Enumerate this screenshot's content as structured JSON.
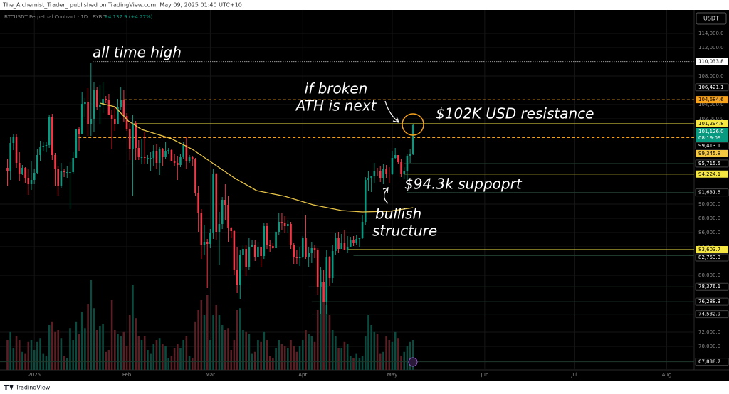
{
  "chart_data": {
    "type": "candlestick",
    "publisher": "The_Alchemist_Trader_ published on TradingView.com, May 09, 2025 01:40 UTC+10",
    "symbol": "BTCUSDT Perpetual Contract · 1D · BYBIT",
    "change": "+4,137.9 (+4.27%)",
    "currency": "USDT",
    "brand": "TradingView",
    "annotations": [
      "all time high",
      "if broken",
      "ATH is next",
      "$102K USD resistance",
      "$94.3k suppoprt",
      "bullish",
      "structure"
    ],
    "up_color": "#089981",
    "down_color": "#f23645",
    "grid": true,
    "xlim": [
      -2.5,
      230.2
    ],
    "xticks": [
      {
        "value": 9,
        "label": "2025"
      },
      {
        "value": 40,
        "label": "Feb"
      },
      {
        "value": 68,
        "label": "Mar"
      },
      {
        "value": 99,
        "label": "Apr"
      },
      {
        "value": 129,
        "label": "May"
      },
      {
        "value": 160,
        "label": "Jun"
      },
      {
        "value": 190,
        "label": "Jul"
      },
      {
        "value": 221,
        "label": "Aug"
      }
    ],
    "ylim": [
      66700,
      116900
    ],
    "yticks": [
      {
        "value": 114000,
        "label": "114,000.0"
      },
      {
        "value": 112000,
        "label": "112,000.0"
      },
      {
        "value": 108000,
        "label": "108,000.0"
      },
      {
        "value": 104000,
        "label": "104,000.0"
      },
      {
        "value": 102000,
        "label": "102,000.0"
      },
      {
        "value": 90000,
        "label": "90,000.0"
      },
      {
        "value": 88000,
        "label": "88,000.0"
      },
      {
        "value": 86000,
        "label": "86,000.0"
      },
      {
        "value": 84000,
        "label": "84,000.0"
      },
      {
        "value": 80000,
        "label": "80,000.0"
      },
      {
        "value": 72000,
        "label": "72,000.0"
      },
      {
        "value": 70000,
        "label": "70,000.0"
      }
    ],
    "candles": [
      [
        95100,
        96400,
        92500,
        94700
      ],
      [
        94700,
        99400,
        93400,
        98600
      ],
      [
        98600,
        99900,
        97600,
        99400
      ],
      [
        99400,
        99900,
        95100,
        95800
      ],
      [
        95800,
        97300,
        93300,
        94200
      ],
      [
        94200,
        95500,
        94100,
        95100
      ],
      [
        95100,
        95200,
        93000,
        93700
      ],
      [
        93700,
        94900,
        91300,
        92800
      ],
      [
        92800,
        96100,
        92000,
        93400
      ],
      [
        93400,
        94900,
        92800,
        94400
      ],
      [
        94400,
        97800,
        94300,
        96900
      ],
      [
        96900,
        98900,
        96000,
        98100
      ],
      [
        98100,
        98700,
        97500,
        98200
      ],
      [
        98200,
        98800,
        97300,
        98300
      ],
      [
        98300,
        102500,
        97900,
        102200
      ],
      [
        102200,
        102700,
        96200,
        96900
      ],
      [
        96900,
        97200,
        92500,
        95000
      ],
      [
        95000,
        95300,
        91200,
        92500
      ],
      [
        92500,
        95800,
        92200,
        94700
      ],
      [
        94700,
        95000,
        93800,
        94500
      ],
      [
        94500,
        95300,
        93700,
        94500
      ],
      [
        94500,
        95900,
        89300,
        94500
      ],
      [
        94500,
        97300,
        94300,
        96500
      ],
      [
        96500,
        100600,
        96500,
        100500
      ],
      [
        100500,
        100800,
        97400,
        99900
      ],
      [
        99900,
        105800,
        99900,
        104100
      ],
      [
        104100,
        104900,
        102300,
        104400
      ],
      [
        104400,
        106300,
        99600,
        101200
      ],
      [
        101200,
        109900,
        99600,
        102000
      ],
      [
        102000,
        107200,
        100200,
        106100
      ],
      [
        106100,
        106400,
        103300,
        103600
      ],
      [
        103600,
        106800,
        101300,
        104000
      ],
      [
        104000,
        107100,
        102800,
        104800
      ],
      [
        104800,
        105200,
        104200,
        104700
      ],
      [
        104700,
        105500,
        102500,
        102600
      ],
      [
        102600,
        103200,
        97800,
        102000
      ],
      [
        102000,
        103700,
        100300,
        101300
      ],
      [
        101300,
        104800,
        101300,
        103700
      ],
      [
        103700,
        106400,
        103300,
        104700
      ],
      [
        104700,
        106000,
        101600,
        102400
      ],
      [
        102400,
        102800,
        100300,
        100600
      ],
      [
        100600,
        101400,
        96200,
        97700
      ],
      [
        97700,
        102500,
        91200,
        101400
      ],
      [
        101400,
        101700,
        96200,
        97900
      ],
      [
        97900,
        99000,
        96200,
        96600
      ],
      [
        96600,
        99200,
        95700,
        96600
      ],
      [
        96600,
        100100,
        95700,
        96500
      ],
      [
        96500,
        96900,
        95700,
        96500
      ],
      [
        96500,
        97300,
        94700,
        96500
      ],
      [
        96500,
        98300,
        95300,
        97400
      ],
      [
        97400,
        98500,
        94900,
        95800
      ],
      [
        95800,
        98100,
        94100,
        97800
      ],
      [
        97800,
        97900,
        95300,
        96600
      ],
      [
        96600,
        98800,
        96300,
        97500
      ],
      [
        97500,
        97900,
        97100,
        97600
      ],
      [
        97600,
        97700,
        96000,
        96100
      ],
      [
        96100,
        97000,
        95300,
        95800
      ],
      [
        95800,
        96700,
        93400,
        95500
      ],
      [
        95500,
        97000,
        95200,
        96600
      ],
      [
        96600,
        98700,
        96300,
        98300
      ],
      [
        98300,
        99500,
        94900,
        96100
      ],
      [
        96100,
        96900,
        95800,
        96600
      ],
      [
        96600,
        96700,
        95300,
        96300
      ],
      [
        96300,
        96500,
        91200,
        91500
      ],
      [
        91500,
        92500,
        86100,
        88700
      ],
      [
        88700,
        89300,
        82300,
        84300
      ],
      [
        84300,
        87000,
        82800,
        84700
      ],
      [
        84700,
        85100,
        78200,
        84400
      ],
      [
        84400,
        86500,
        83800,
        86000
      ],
      [
        86000,
        95000,
        85100,
        94300
      ],
      [
        94300,
        94400,
        85000,
        86100
      ],
      [
        86100,
        88900,
        81500,
        87200
      ],
      [
        87200,
        91000,
        86500,
        90600
      ],
      [
        90600,
        92800,
        87800,
        89900
      ],
      [
        89900,
        91200,
        84700,
        86700
      ],
      [
        86700,
        86800,
        85300,
        86200
      ],
      [
        86200,
        86400,
        80100,
        80700
      ],
      [
        80700,
        83900,
        77500,
        78600
      ],
      [
        78600,
        83600,
        76600,
        82900
      ],
      [
        82900,
        84300,
        80700,
        83700
      ],
      [
        83700,
        84300,
        79900,
        81100
      ],
      [
        81100,
        85300,
        80800,
        84000
      ],
      [
        84000,
        85000,
        83900,
        84300
      ],
      [
        84300,
        85000,
        82000,
        82600
      ],
      [
        82600,
        84700,
        82500,
        84000
      ],
      [
        84000,
        84000,
        81200,
        82700
      ],
      [
        82700,
        87400,
        82300,
        86900
      ],
      [
        86900,
        87400,
        83700,
        84200
      ],
      [
        84200,
        84900,
        83200,
        84100
      ],
      [
        84100,
        84500,
        83700,
        83800
      ],
      [
        83800,
        86200,
        83800,
        86100
      ],
      [
        86100,
        88700,
        85600,
        87500
      ],
      [
        87500,
        88700,
        86300,
        87400
      ],
      [
        87400,
        88300,
        85900,
        86900
      ],
      [
        86900,
        87800,
        85900,
        87200
      ],
      [
        87200,
        87500,
        83700,
        84300
      ],
      [
        84300,
        84500,
        81600,
        82600
      ],
      [
        82600,
        83500,
        81600,
        82400
      ],
      [
        82400,
        83900,
        81300,
        82500
      ],
      [
        82500,
        85500,
        82400,
        85200
      ],
      [
        85200,
        88500,
        82300,
        82500
      ],
      [
        82500,
        83900,
        81200,
        83100
      ],
      [
        83100,
        84700,
        81700,
        83800
      ],
      [
        83800,
        84200,
        82400,
        83500
      ],
      [
        83500,
        83800,
        77200,
        78300
      ],
      [
        78300,
        81200,
        74500,
        79100
      ],
      [
        79100,
        80800,
        76200,
        76300
      ],
      [
        76300,
        83500,
        74600,
        82600
      ],
      [
        82600,
        82700,
        78500,
        79600
      ],
      [
        79600,
        84200,
        78900,
        83400
      ],
      [
        83400,
        85900,
        82800,
        85300
      ],
      [
        85300,
        86100,
        83100,
        83700
      ],
      [
        83700,
        85800,
        83700,
        84500
      ],
      [
        84500,
        86400,
        83600,
        83600
      ],
      [
        83600,
        85500,
        83100,
        84000
      ],
      [
        84000,
        85400,
        83900,
        84900
      ],
      [
        84900,
        85500,
        84100,
        84500
      ],
      [
        84500,
        85600,
        84300,
        85100
      ],
      [
        85100,
        85300,
        83900,
        85200
      ],
      [
        85200,
        88500,
        85100,
        87500
      ],
      [
        87500,
        93800,
        87000,
        93400
      ],
      [
        93400,
        94700,
        91900,
        93700
      ],
      [
        93700,
        94000,
        91700,
        93900
      ],
      [
        93900,
        95800,
        92900,
        94700
      ],
      [
        94700,
        95100,
        93900,
        94600
      ],
      [
        94600,
        95300,
        93100,
        93700
      ],
      [
        93700,
        95600,
        92800,
        95000
      ],
      [
        95000,
        95500,
        93700,
        94300
      ],
      [
        94300,
        95200,
        92900,
        94200
      ],
      [
        94200,
        97400,
        94100,
        96500
      ],
      [
        96500,
        97900,
        96300,
        96900
      ],
      [
        96900,
        96900,
        95700,
        95900
      ],
      [
        95900,
        96300,
        93800,
        94300
      ],
      [
        94300,
        95200,
        93500,
        94700
      ],
      [
        94700,
        97000,
        93400,
        96800
      ],
      [
        96800,
        97700,
        95800,
        97000
      ],
      [
        96988.1,
        101294.8,
        96900,
        101126
      ]
    ],
    "volume_lim": [
      0,
      100
    ],
    "volume": [
      30,
      38,
      22,
      34,
      30,
      18,
      16,
      28,
      30,
      20,
      28,
      32,
      16,
      14,
      45,
      48,
      38,
      40,
      32,
      14,
      12,
      42,
      30,
      48,
      36,
      58,
      42,
      66,
      90,
      62,
      40,
      44,
      46,
      18,
      20,
      70,
      40,
      36,
      34,
      38,
      24,
      55,
      85,
      52,
      34,
      30,
      34,
      20,
      16,
      26,
      30,
      32,
      26,
      24,
      12,
      14,
      22,
      26,
      22,
      30,
      34,
      14,
      12,
      48,
      60,
      70,
      55,
      75,
      30,
      55,
      65,
      55,
      45,
      40,
      42,
      20,
      30,
      60,
      62,
      40,
      38,
      36,
      16,
      18,
      30,
      28,
      38,
      30,
      14,
      12,
      22,
      30,
      26,
      24,
      22,
      30,
      24,
      18,
      24,
      30,
      40,
      36,
      34,
      28,
      60,
      100,
      70,
      65,
      55,
      40,
      34,
      22,
      22,
      28,
      26,
      14,
      12,
      16,
      12,
      14,
      34,
      55,
      45,
      38,
      36,
      16,
      18,
      34,
      30,
      28,
      38,
      32,
      14,
      18,
      24,
      28,
      30
    ],
    "ma": {
      "color": "#e8c547",
      "x": [
        31,
        36,
        40.5,
        45,
        55,
        62,
        69,
        76,
        83.5,
        93,
        102.5,
        112,
        119,
        128,
        136
      ],
      "values": [
        104200,
        103700,
        101700,
        100500,
        99200,
        97700,
        95700,
        93700,
        91900,
        91100,
        89900,
        89100,
        88900,
        89000,
        89500
      ]
    },
    "levels": [
      {
        "value": 110033.8,
        "x_start": 28.6,
        "color": "#dddddd",
        "style": "dotted"
      },
      {
        "value": 104684.6,
        "x_start": 39,
        "color": "#f7a21b",
        "style": "dashed"
      },
      {
        "value": 101294.8,
        "x_start": 42.4,
        "color": "#f5e642",
        "style": "solid"
      },
      {
        "value": 99345.8,
        "x_start": 23.8,
        "color": "#f7a21b",
        "style": "dashed"
      },
      {
        "value": 94224.1,
        "x_start": 133,
        "color": "#f5e642",
        "style": "solid"
      },
      {
        "value": 83603.7,
        "x_start": 114,
        "color": "#f5e642",
        "style": "solid"
      },
      {
        "value": 95715.5,
        "x_start": 133,
        "color": "#1f3a2c",
        "style": "solid"
      },
      {
        "value": 91631.5,
        "x_start": 134,
        "color": "#1f3a2c",
        "style": "solid"
      },
      {
        "value": 82753.3,
        "x_start": 116,
        "color": "#1f3a2c",
        "style": "solid"
      },
      {
        "value": 78376.1,
        "x_start": 101,
        "color": "#1f3a2c",
        "style": "solid"
      },
      {
        "value": 76288.3,
        "x_start": 102,
        "color": "#1f3a2c",
        "style": "solid"
      },
      {
        "value": 74532.9,
        "x_start": 102,
        "color": "#1f3a2c",
        "style": "solid"
      },
      {
        "value": 67838.7,
        "x_start": -2.5,
        "color": "#1f3a2c",
        "style": "solid"
      }
    ],
    "price_labels": [
      {
        "value": 110033.8,
        "label": "110,033.8",
        "color": "#ffffff",
        "text_color": "#000000"
      },
      {
        "value": 106421.1,
        "label": "106,421.1",
        "color": "#000000",
        "text_color": "#ffffff"
      },
      {
        "value": 104684.6,
        "label": "104,684.6",
        "color": "#f7a21b",
        "text_color": "#000000"
      },
      {
        "value": 101294.8,
        "label": "101,294.8",
        "color": "#f5e642",
        "text_color": "#000000"
      },
      {
        "value": 101126.0,
        "label": "101,126.0",
        "countdown": "08:19:09",
        "color": "#089981",
        "text_color": "#ffffff"
      },
      {
        "value": 99345.8,
        "label": "99,345.8",
        "color": "#f5c842",
        "text_color": "#000000"
      },
      {
        "value": 99413.1,
        "label": "99,413.1",
        "color": "#000000",
        "text_color": "#ffffff"
      },
      {
        "value": 95715.5,
        "label": "95,715.5",
        "color": "#000000",
        "text_color": "#ffffff"
      },
      {
        "value": 94224.1,
        "label": "94,224.1",
        "color": "#f5e642",
        "text_color": "#000000"
      },
      {
        "value": 91631.5,
        "label": "91,631.5",
        "color": "#000000",
        "text_color": "#ffffff"
      },
      {
        "value": 83603.7,
        "label": "83,603.7",
        "color": "#f5e642",
        "text_color": "#000000"
      },
      {
        "value": 82753.3,
        "label": "82,753.3",
        "color": "#000000",
        "text_color": "#ffffff"
      },
      {
        "value": 78376.1,
        "label": "78,376.1",
        "color": "#000000",
        "text_color": "#ffffff"
      },
      {
        "value": 76288.3,
        "label": "76,288.3",
        "color": "#000000",
        "text_color": "#ffffff"
      },
      {
        "value": 74532.9,
        "label": "74,532.9",
        "color": "#000000",
        "text_color": "#ffffff"
      },
      {
        "value": 67838.7,
        "label": "67,838.7",
        "color": "#000000",
        "text_color": "#ffffff"
      }
    ]
  }
}
